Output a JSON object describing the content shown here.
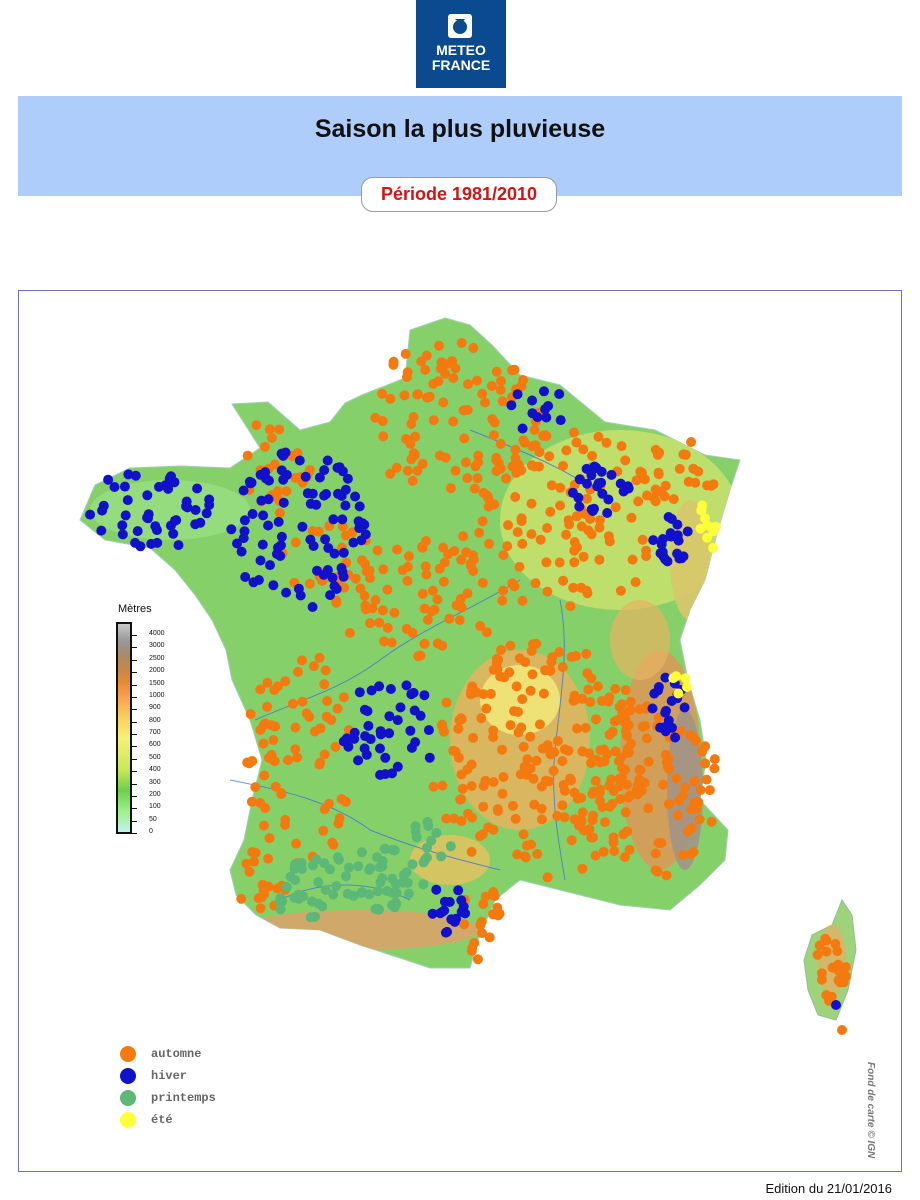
{
  "header": {
    "logo_line1": "METEO",
    "logo_line2": "FRANCE",
    "title": "Saison la plus pluvieuse",
    "period": "Période 1981/2010"
  },
  "elevation_scale": {
    "title": "Mètres",
    "ticks": [
      "4000",
      "3000",
      "2500",
      "2000",
      "1500",
      "1000",
      "900",
      "800",
      "700",
      "600",
      "500",
      "400",
      "300",
      "200",
      "100",
      "50",
      "0"
    ]
  },
  "legend": [
    {
      "label": "automne",
      "color": "#f47a10"
    },
    {
      "label": "hiver",
      "color": "#1111cc"
    },
    {
      "label": "printemps",
      "color": "#5bb876"
    },
    {
      "label": "été",
      "color": "#ffff3a"
    }
  ],
  "colors": {
    "land_low": "#7fcf62",
    "land_mid": "#d9e66c",
    "mountain": "#e5a45c",
    "high": "#a1928a",
    "river": "#3d6ee0"
  },
  "credit": "Fond de carte © IGN",
  "footer": {
    "edition": "Edition du 21/01/2016"
  }
}
